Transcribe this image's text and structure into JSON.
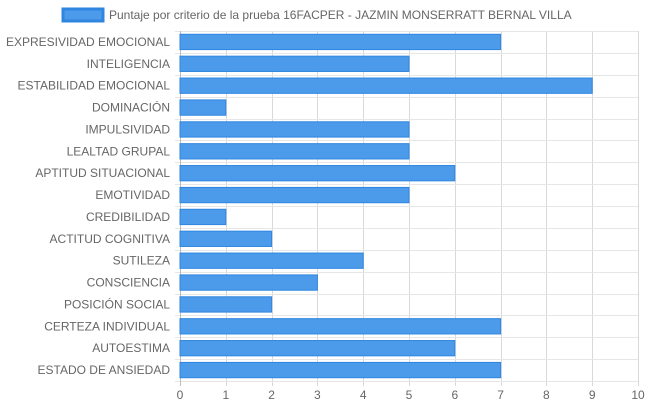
{
  "chart_data": {
    "type": "bar",
    "orientation": "horizontal",
    "categories": [
      "EXPRESIVIDAD EMOCIONAL",
      "INTELIGENCIA",
      "ESTABILIDAD EMOCIONAL",
      "DOMINACIÓN",
      "IMPULSIVIDAD",
      "LEALTAD GRUPAL",
      "APTITUD SITUACIONAL",
      "EMOTIVIDAD",
      "CREDIBILIDAD",
      "ACTITUD COGNITIVA",
      "SUTILEZA",
      "CONSCIENCIA",
      "POSICIÓN SOCIAL",
      "CERTEZA INDIVIDUAL",
      "AUTOESTIMA",
      "ESTADO DE ANSIEDAD"
    ],
    "series": [
      {
        "name": "Puntaje por criterio de la prueba 16FACPER - JAZMIN MONSERRATT BERNAL VILLA",
        "values": [
          7,
          5,
          9,
          1,
          5,
          5,
          6,
          5,
          1,
          2,
          4,
          3,
          2,
          7,
          6,
          7
        ],
        "color": "#4c9beb",
        "border_color": "#2f86e0"
      }
    ],
    "xlim": [
      0,
      10
    ],
    "xticks": [
      "0",
      "1",
      "2",
      "3",
      "4",
      "5",
      "6",
      "7",
      "8",
      "9",
      "10"
    ],
    "grid": true,
    "legend_position": "top"
  }
}
